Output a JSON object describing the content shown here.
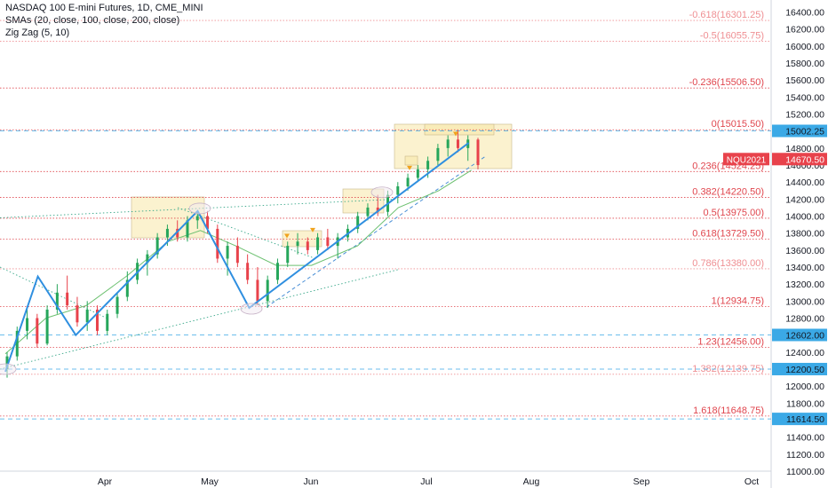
{
  "legend": {
    "symbol": "NASDAQ 100 E-mini Futures, 1D, CME_MINI",
    "sma": "SMAs (20, close, 100, close, 200, close)",
    "zigzag": "Zig Zag (5, 10)"
  },
  "colors": {
    "fib": "#e0464e",
    "fib_faded": "#ef8f93",
    "up_candle": "#26a65b",
    "down_candle": "#e8424b",
    "zigzag": "#2f8fe0",
    "sma": "#6cc070",
    "box": "#f7e7a8",
    "dashed_blue": "#4a8fd6",
    "axis_text": "#131722",
    "badge_blue": "#3ba9e6",
    "badge_red": "#e8424b"
  },
  "chart_data": {
    "type": "candlestick",
    "ylim": [
      11000,
      16500
    ],
    "y_axis_ticks": [
      11000,
      11200,
      11400,
      11600,
      11800,
      12000,
      12200,
      12400,
      12600,
      12800,
      13000,
      13200,
      13400,
      13600,
      13800,
      14000,
      14200,
      14400,
      14600,
      14800,
      15000,
      15200,
      15400,
      15600,
      15800,
      16000,
      16200,
      16400
    ],
    "y_axis_tick_labels": [
      "11000.00",
      "11200.00",
      "11400.00",
      "11600.00",
      "11800.00",
      "12000.00",
      "12200.00",
      "12400.00",
      "12600.00",
      "12800.00",
      "13000.00",
      "13200.00",
      "13400.00",
      "13600.00",
      "13800.00",
      "14000.00",
      "14200.00",
      "14400.00",
      "14600.00",
      "14800.00",
      "15000.00",
      "15200.00",
      "15400.00",
      "15600.00",
      "15800.00",
      "16000.00",
      "16200.00",
      "16400.00"
    ],
    "x_axis_labels": [
      "Apr",
      "May",
      "Jun",
      "Jul",
      "Aug",
      "Sep",
      "Oct"
    ],
    "fib_levels": [
      {
        "label": "-0.618(16301.25)",
        "value": 16301.25,
        "faded": true
      },
      {
        "label": "-0.5(16055.75)",
        "value": 16055.75,
        "faded": true
      },
      {
        "label": "-0.236(15506.50)",
        "value": 15506.5,
        "faded": false
      },
      {
        "label": "0(15015.50)",
        "value": 15015.5,
        "faded": false
      },
      {
        "label": "0.236(14524.25)",
        "value": 14524.25,
        "faded": false
      },
      {
        "label": "0.382(14220.50)",
        "value": 14220.5,
        "faded": false
      },
      {
        "label": "0.5(13975.00)",
        "value": 13975.0,
        "faded": false
      },
      {
        "label": "0.618(13729.50)",
        "value": 13729.5,
        "faded": false
      },
      {
        "label": "0.786(13380.00)",
        "value": 13380.0,
        "faded": true
      },
      {
        "label": "1(12934.75)",
        "value": 12934.75,
        "faded": false
      },
      {
        "label": "1.23(12456.00)",
        "value": 12456.0,
        "faded": false
      },
      {
        "label": "1.382(12139.75)",
        "value": 12139.75,
        "faded": true
      },
      {
        "label": "1.618(11648.75)",
        "value": 11648.75,
        "faded": false
      }
    ],
    "price_badges": [
      {
        "label": "15002.25",
        "value": 15002.25,
        "color": "blue"
      },
      {
        "label": "14670.50",
        "value": 14670.5,
        "color": "red",
        "tag": "NQU2021"
      },
      {
        "label": "12602.00",
        "value": 12602.0,
        "color": "blue"
      },
      {
        "label": "12200.50",
        "value": 12200.5,
        "color": "blue"
      },
      {
        "label": "11614.50",
        "value": 11614.5,
        "color": "blue"
      }
    ],
    "zigzag": [
      {
        "t": 0,
        "price": 12170
      },
      {
        "t": 12,
        "price": 13290
      },
      {
        "t": 26,
        "price": 12600
      },
      {
        "t": 71,
        "price": 14060
      },
      {
        "t": 90,
        "price": 12920
      },
      {
        "t": 171,
        "price": 14860
      }
    ],
    "sma20": [
      {
        "t": 0,
        "price": 12380
      },
      {
        "t": 15,
        "price": 12800
      },
      {
        "t": 30,
        "price": 12950
      },
      {
        "t": 45,
        "price": 13300
      },
      {
        "t": 60,
        "price": 13700
      },
      {
        "t": 72,
        "price": 13830
      },
      {
        "t": 85,
        "price": 13650
      },
      {
        "t": 100,
        "price": 13420
      },
      {
        "t": 113,
        "price": 13420
      },
      {
        "t": 130,
        "price": 13650
      },
      {
        "t": 145,
        "price": 14100
      },
      {
        "t": 160,
        "price": 14300
      },
      {
        "t": 172,
        "price": 14540
      }
    ]
  },
  "candles": [
    {
      "o": 12200,
      "h": 12400,
      "l": 12100,
      "c": 12350
    },
    {
      "o": 12350,
      "h": 12700,
      "l": 12300,
      "c": 12650
    },
    {
      "o": 12650,
      "h": 12900,
      "l": 12550,
      "c": 12800
    },
    {
      "o": 12800,
      "h": 12850,
      "l": 12450,
      "c": 12500
    },
    {
      "o": 12500,
      "h": 12950,
      "l": 12480,
      "c": 12900
    },
    {
      "o": 12900,
      "h": 13200,
      "l": 12850,
      "c": 13100
    },
    {
      "o": 13100,
      "h": 13300,
      "l": 12900,
      "c": 12950
    },
    {
      "o": 12950,
      "h": 13050,
      "l": 12700,
      "c": 12750
    },
    {
      "o": 12750,
      "h": 13000,
      "l": 12650,
      "c": 12900
    },
    {
      "o": 12900,
      "h": 12950,
      "l": 12600,
      "c": 12650
    },
    {
      "o": 12650,
      "h": 12900,
      "l": 12600,
      "c": 12850
    },
    {
      "o": 12850,
      "h": 13100,
      "l": 12800,
      "c": 13050
    },
    {
      "o": 13050,
      "h": 13350,
      "l": 13000,
      "c": 13250
    },
    {
      "o": 13250,
      "h": 13500,
      "l": 13200,
      "c": 13450
    },
    {
      "o": 13450,
      "h": 13600,
      "l": 13300,
      "c": 13550
    },
    {
      "o": 13550,
      "h": 13800,
      "l": 13500,
      "c": 13750
    },
    {
      "o": 13750,
      "h": 13900,
      "l": 13650,
      "c": 13850
    },
    {
      "o": 13850,
      "h": 13950,
      "l": 13700,
      "c": 13750
    },
    {
      "o": 13750,
      "h": 14000,
      "l": 13700,
      "c": 13950
    },
    {
      "o": 13950,
      "h": 14050,
      "l": 13850,
      "c": 14000
    },
    {
      "o": 14000,
      "h": 14060,
      "l": 13800,
      "c": 13850
    },
    {
      "o": 13850,
      "h": 13900,
      "l": 13450,
      "c": 13500
    },
    {
      "o": 13500,
      "h": 13700,
      "l": 13300,
      "c": 13650
    },
    {
      "o": 13650,
      "h": 13750,
      "l": 13400,
      "c": 13450
    },
    {
      "o": 13450,
      "h": 13550,
      "l": 13200,
      "c": 13250
    },
    {
      "o": 13250,
      "h": 13400,
      "l": 12950,
      "c": 13000
    },
    {
      "o": 13000,
      "h": 13300,
      "l": 12920,
      "c": 13250
    },
    {
      "o": 13250,
      "h": 13500,
      "l": 13200,
      "c": 13450
    },
    {
      "o": 13450,
      "h": 13700,
      "l": 13400,
      "c": 13650
    },
    {
      "o": 13650,
      "h": 13800,
      "l": 13550,
      "c": 13700
    },
    {
      "o": 13700,
      "h": 13750,
      "l": 13550,
      "c": 13600
    },
    {
      "o": 13600,
      "h": 13800,
      "l": 13550,
      "c": 13750
    },
    {
      "o": 13750,
      "h": 13850,
      "l": 13600,
      "c": 13650
    },
    {
      "o": 13650,
      "h": 13800,
      "l": 13500,
      "c": 13750
    },
    {
      "o": 13750,
      "h": 13900,
      "l": 13700,
      "c": 13850
    },
    {
      "o": 13850,
      "h": 14050,
      "l": 13800,
      "c": 14000
    },
    {
      "o": 14000,
      "h": 14150,
      "l": 13950,
      "c": 14100
    },
    {
      "o": 14100,
      "h": 14250,
      "l": 14000,
      "c": 14050
    },
    {
      "o": 14050,
      "h": 14300,
      "l": 14000,
      "c": 14250
    },
    {
      "o": 14250,
      "h": 14400,
      "l": 14150,
      "c": 14350
    },
    {
      "o": 14350,
      "h": 14500,
      "l": 14300,
      "c": 14450
    },
    {
      "o": 14450,
      "h": 14600,
      "l": 14400,
      "c": 14550
    },
    {
      "o": 14550,
      "h": 14700,
      "l": 14450,
      "c": 14650
    },
    {
      "o": 14650,
      "h": 14850,
      "l": 14600,
      "c": 14800
    },
    {
      "o": 14800,
      "h": 14950,
      "l": 14700,
      "c": 14900
    },
    {
      "o": 14900,
      "h": 15010,
      "l": 14750,
      "c": 14800
    },
    {
      "o": 14800,
      "h": 14950,
      "l": 14650,
      "c": 14900
    },
    {
      "o": 14900,
      "h": 14920,
      "l": 14550,
      "c": 14600
    }
  ]
}
